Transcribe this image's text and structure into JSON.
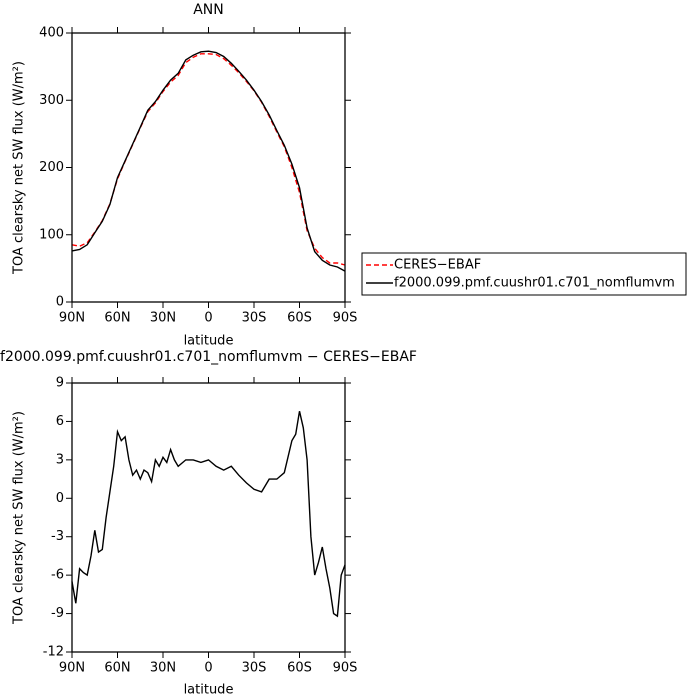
{
  "chart_data": [
    {
      "type": "line",
      "title": "ANN",
      "xlabel": "latitude",
      "ylabel": "TOA clearsky net SW flux (W/m²)",
      "x": [
        90,
        85,
        80,
        75,
        70,
        65,
        60,
        55,
        50,
        45,
        40,
        35,
        30,
        25,
        20,
        15,
        10,
        5,
        0,
        -5,
        -10,
        -15,
        -20,
        -25,
        -30,
        -35,
        -40,
        -45,
        -50,
        -55,
        -60,
        -65,
        -70,
        -75,
        -80,
        -85,
        -90
      ],
      "series": [
        {
          "name": "CERES−EBAF",
          "color": "#ff0000",
          "linestyle": "dashed",
          "values": [
            85,
            83,
            88,
            104,
            121,
            146,
            183,
            209,
            234,
            259,
            283,
            296,
            313,
            327,
            337,
            356,
            364,
            369,
            369,
            368,
            362,
            352,
            341,
            328,
            314,
            297,
            276,
            253,
            231,
            200,
            163,
            106,
            80,
            66,
            58,
            58,
            55
          ]
        },
        {
          "name": "f2000.099.pmf.cuushr01.c701_nomflumvm",
          "color": "#000000",
          "linestyle": "solid",
          "values": [
            76,
            78,
            85,
            103,
            120,
            145,
            185,
            210,
            235,
            260,
            285,
            298,
            315,
            330,
            340,
            360,
            367,
            372,
            373,
            371,
            365,
            355,
            343,
            330,
            315,
            298,
            278,
            255,
            233,
            205,
            170,
            110,
            75,
            62,
            55,
            52,
            46
          ]
        }
      ],
      "xlim": [
        90,
        -90
      ],
      "xticks": [
        {
          "value": 90,
          "label": "90N"
        },
        {
          "value": 60,
          "label": "60N"
        },
        {
          "value": 30,
          "label": "30N"
        },
        0,
        {
          "value": -30,
          "label": "30S"
        },
        {
          "value": -60,
          "label": "60S"
        },
        {
          "value": -90,
          "label": "90S"
        }
      ],
      "ylim": [
        0,
        400
      ],
      "yticks": [
        0,
        100,
        200,
        300,
        400
      ],
      "legend": "right"
    },
    {
      "type": "line",
      "title": "f2000.099.pmf.cuushr01.c701_nomflumvm − CERES−EBAF",
      "xlabel": "latitude",
      "ylabel": "TOA clearsky net SW flux (W/m²)",
      "x": [
        90,
        87.5,
        85,
        82.5,
        80,
        77.5,
        75,
        72.5,
        70,
        67.5,
        65,
        62.5,
        60,
        57.5,
        55,
        52.5,
        50,
        47.5,
        45,
        42.5,
        40,
        37.5,
        35,
        32.5,
        30,
        27.5,
        25,
        22.5,
        20,
        15,
        10,
        5,
        0,
        -5,
        -10,
        -15,
        -20,
        -25,
        -30,
        -35,
        -40,
        -45,
        -50,
        -55,
        -57.5,
        -60,
        -62.5,
        -65,
        -67.5,
        -70,
        -72.5,
        -75,
        -77.5,
        -80,
        -82.5,
        -85,
        -87.5,
        -90
      ],
      "series": [
        {
          "name": null,
          "color": "#000000",
          "linestyle": "solid",
          "values": [
            -6.5,
            -8.2,
            -5.5,
            -5.8,
            -6,
            -4.5,
            -2.5,
            -4.2,
            -4,
            -1.5,
            0.5,
            2.5,
            5.2,
            4.5,
            4.8,
            3,
            1.8,
            2.2,
            1.5,
            2.2,
            2,
            1.3,
            3,
            2.5,
            3.2,
            2.8,
            3.8,
            3,
            2.5,
            3,
            3,
            2.8,
            3,
            2.5,
            2.2,
            2.5,
            1.8,
            1.2,
            0.7,
            0.5,
            1.5,
            1.5,
            2,
            4.5,
            5,
            6.8,
            5.5,
            3,
            -3,
            -6,
            -5,
            -3.8,
            -5.5,
            -7,
            -9,
            -9.2,
            -6,
            -5.2
          ]
        }
      ],
      "xlim": [
        90,
        -90
      ],
      "xticks": [
        {
          "value": 90,
          "label": "90N"
        },
        {
          "value": 60,
          "label": "60N"
        },
        {
          "value": 30,
          "label": "30N"
        },
        0,
        {
          "value": -30,
          "label": "30S"
        },
        {
          "value": -60,
          "label": "60S"
        },
        {
          "value": -90,
          "label": "90S"
        }
      ],
      "ylim": [
        -12,
        9
      ],
      "yticks": [
        -12,
        -9,
        -6,
        -3,
        0,
        3,
        6,
        9
      ]
    }
  ]
}
